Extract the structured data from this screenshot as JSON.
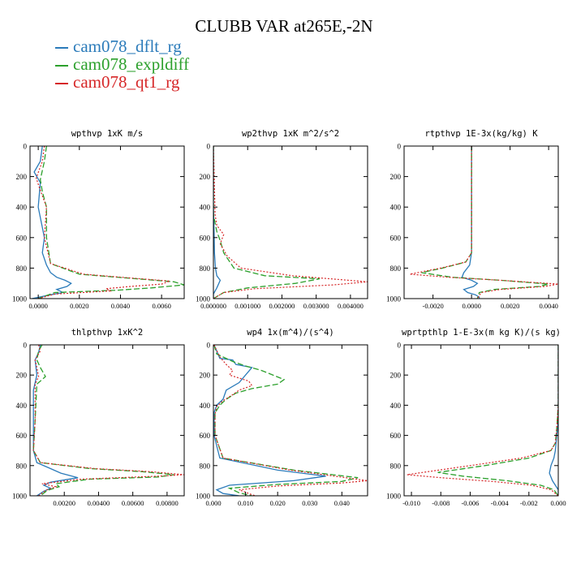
{
  "title": "CLUBB VAR at265E,-2N",
  "legend": [
    {
      "name": "cam078_dflt_rg",
      "color": "#2b7bba"
    },
    {
      "name": "cam078_expldiff",
      "color": "#2ca02c"
    },
    {
      "name": "cam078_qt1_rg",
      "color": "#d62728"
    }
  ],
  "chart_data": [
    {
      "type": "line",
      "title": "wpthvp   1xK m/s",
      "xlim": [
        -0.0004,
        0.0071
      ],
      "ylim": [
        1000,
        0
      ],
      "xticks": [
        0.0,
        0.002,
        0.004,
        0.006
      ],
      "xtick_labels": [
        "0.0000",
        "0.0020",
        "0.0040",
        "0.0060"
      ],
      "yticks": [
        0,
        200,
        400,
        600,
        800,
        1000
      ],
      "series": [
        {
          "name": "cam078_dflt_rg",
          "x": [
            0.0002,
            0.0001,
            -0.0002,
            0.0001,
            0.0,
            0.0003,
            0.0002,
            0.0004,
            0.0006,
            0.0009,
            0.0013,
            0.0016,
            0.0014,
            0.0009,
            0.0012,
            0.0006,
            -0.0003
          ],
          "y": [
            0,
            100,
            170,
            240,
            400,
            600,
            700,
            780,
            830,
            860,
            880,
            900,
            920,
            940,
            960,
            975,
            1000
          ]
        },
        {
          "name": "cam078_expldiff",
          "x": [
            0.0004,
            0.0003,
            0.0001,
            0.0002,
            0.0004,
            0.0004,
            0.0006,
            0.002,
            0.0048,
            0.0066,
            0.0071,
            0.0055,
            0.0038,
            0.0008,
            0.0
          ],
          "y": [
            0,
            100,
            220,
            300,
            400,
            600,
            770,
            840,
            870,
            890,
            910,
            930,
            945,
            960,
            1000
          ]
        },
        {
          "name": "cam078_qt1_rg",
          "x": [
            0.0003,
            0.0002,
            -0.0001,
            0.0001,
            0.0004,
            0.0003,
            0.0006,
            0.0022,
            0.005,
            0.0064,
            0.006,
            0.0045,
            0.0033,
            0.0035,
            0.0008,
            0.0
          ],
          "y": [
            0,
            100,
            210,
            290,
            400,
            600,
            770,
            840,
            870,
            885,
            905,
            920,
            935,
            950,
            970,
            1000
          ]
        }
      ]
    },
    {
      "type": "line",
      "title": "wp2thvp   1xK m^2/s^2",
      "xlim": [
        0.0,
        0.0045
      ],
      "ylim": [
        1000,
        0
      ],
      "xticks": [
        0.0,
        0.001,
        0.002,
        0.003,
        0.004
      ],
      "xtick_labels": [
        "0.000000",
        "0.001000",
        "0.002000",
        "0.003000",
        "0.004000"
      ],
      "yticks": [
        0,
        200,
        400,
        600,
        800,
        1000
      ],
      "series": [
        {
          "name": "cam078_dflt_rg",
          "x": [
            0.0,
            0.0,
            2e-05,
            3e-05,
            6e-05,
            0.0001,
            0.0002,
            0.0001,
            0.0,
            0.0
          ],
          "y": [
            0,
            400,
            550,
            700,
            800,
            850,
            880,
            930,
            970,
            1000
          ]
        },
        {
          "name": "cam078_expldiff",
          "x": [
            0.0,
            0.0,
            0.0001,
            0.0002,
            0.0003,
            0.0006,
            0.0015,
            0.0031,
            0.0024,
            0.001,
            0.0003,
            0.0
          ],
          "y": [
            0,
            450,
            560,
            620,
            700,
            800,
            850,
            870,
            900,
            930,
            960,
            1000
          ]
        },
        {
          "name": "cam078_qt1_rg",
          "x": [
            0.0,
            5e-05,
            0.0001,
            0.0003,
            0.0002,
            0.0004,
            0.0008,
            0.0023,
            0.0045,
            0.0035,
            0.0012,
            0.0003,
            0.0
          ],
          "y": [
            0,
            450,
            520,
            580,
            640,
            720,
            800,
            850,
            890,
            910,
            935,
            960,
            1000
          ]
        }
      ]
    },
    {
      "type": "line",
      "title": "rtpthvp   1E-3x(kg/kg) K",
      "xlim": [
        -0.0035,
        0.0045
      ],
      "ylim": [
        1000,
        0
      ],
      "xticks": [
        -0.002,
        0.0,
        0.002,
        0.004
      ],
      "xtick_labels": [
        "-0.0020",
        "0.0000",
        "0.0020",
        "0.0040"
      ],
      "yticks": [
        0,
        200,
        400,
        600,
        800,
        1000
      ],
      "series": [
        {
          "name": "cam078_dflt_rg",
          "x": [
            0.0,
            0.0,
            -0.0001,
            -0.0004,
            -0.0005,
            0.0,
            0.0003,
            0.0001,
            -0.0004,
            -0.0002,
            0.0002,
            0.0004,
            0.0004
          ],
          "y": [
            0,
            700,
            780,
            830,
            860,
            880,
            900,
            920,
            940,
            960,
            975,
            990,
            1000
          ]
        },
        {
          "name": "cam078_expldiff",
          "x": [
            0.0,
            0.0,
            -0.0003,
            -0.0015,
            -0.0026,
            -0.001,
            0.0015,
            0.004,
            0.0035,
            0.0012,
            0.0004,
            0.0003
          ],
          "y": [
            0,
            700,
            760,
            800,
            830,
            860,
            880,
            905,
            920,
            940,
            960,
            1000
          ]
        },
        {
          "name": "cam078_qt1_rg",
          "x": [
            0.0,
            0.0,
            -0.0003,
            -0.0016,
            -0.0032,
            -0.0012,
            0.0015,
            0.0045,
            0.0038,
            0.0015,
            0.0005,
            0.0003
          ],
          "y": [
            0,
            700,
            760,
            800,
            840,
            860,
            880,
            905,
            920,
            940,
            960,
            1000
          ]
        }
      ]
    },
    {
      "type": "line",
      "title": "thlpthvp   1xK^2",
      "xlim": [
        0.0,
        0.009
      ],
      "ylim": [
        1000,
        0
      ],
      "xticks": [
        0.002,
        0.004,
        0.006,
        0.008
      ],
      "xtick_labels": [
        "0.00200",
        "0.00400",
        "0.00600",
        "0.00800"
      ],
      "yticks": [
        0,
        200,
        400,
        600,
        800,
        1000
      ],
      "series": [
        {
          "name": "cam078_dflt_rg",
          "x": [
            0.0006,
            0.0005,
            0.0003,
            0.0004,
            0.0002,
            0.0002,
            0.0002,
            0.0004,
            0.0012,
            0.0018,
            0.0028,
            0.0012,
            0.0008,
            0.0012,
            0.0008,
            0.0004
          ],
          "y": [
            0,
            50,
            100,
            200,
            300,
            500,
            700,
            780,
            820,
            850,
            880,
            910,
            930,
            950,
            970,
            1000
          ]
        },
        {
          "name": "cam078_expldiff",
          "x": [
            0.0007,
            0.0005,
            0.0004,
            0.0006,
            0.0009,
            0.0004,
            0.0003,
            0.0002,
            0.0006,
            0.0035,
            0.0065,
            0.0084,
            0.0075,
            0.0035,
            0.0015,
            0.0017,
            0.001,
            0.0006
          ],
          "y": [
            0,
            40,
            100,
            150,
            210,
            260,
            500,
            700,
            780,
            820,
            840,
            860,
            875,
            890,
            920,
            940,
            965,
            1000
          ]
        },
        {
          "name": "cam078_qt1_rg",
          "x": [
            0.0005,
            0.0006,
            0.0003,
            0.0004,
            0.0005,
            0.0003,
            0.0003,
            0.0002,
            0.0006,
            0.0038,
            0.007,
            0.009,
            0.0075,
            0.003,
            0.0007,
            0.0015,
            0.0009,
            0.0005
          ],
          "y": [
            0,
            40,
            100,
            150,
            210,
            260,
            500,
            700,
            780,
            820,
            840,
            860,
            870,
            890,
            920,
            940,
            965,
            1000
          ]
        }
      ]
    },
    {
      "type": "line",
      "title": "wp4   1x(m^4)/(s^4)",
      "xlim": [
        0.0,
        0.048
      ],
      "ylim": [
        1000,
        0
      ],
      "xticks": [
        0.0,
        0.01,
        0.02,
        0.03,
        0.04
      ],
      "xtick_labels": [
        "0.000",
        "0.010",
        "0.020",
        "0.030",
        "0.040"
      ],
      "yticks": [
        0,
        200,
        400,
        600,
        800,
        1000
      ],
      "series": [
        {
          "name": "cam078_dflt_rg",
          "x": [
            0.0002,
            0.001,
            0.002,
            0.006,
            0.007,
            0.012,
            0.01,
            0.008,
            0.004,
            0.003,
            0.001,
            0.0002,
            0.0002,
            0.002,
            0.02,
            0.035,
            0.025,
            0.005,
            0.001,
            0.003,
            0.008
          ],
          "y": [
            0,
            40,
            90,
            100,
            130,
            150,
            200,
            250,
            300,
            360,
            400,
            450,
            600,
            750,
            830,
            870,
            900,
            930,
            960,
            985,
            1000
          ]
        },
        {
          "name": "cam078_expldiff",
          "x": [
            0.0002,
            0.001,
            0.006,
            0.01,
            0.015,
            0.022,
            0.02,
            0.012,
            0.007,
            0.004,
            0.002,
            0.0005,
            0.0005,
            0.003,
            0.025,
            0.045,
            0.04,
            0.02,
            0.005,
            0.008,
            0.012
          ],
          "y": [
            0,
            60,
            110,
            140,
            170,
            230,
            260,
            290,
            320,
            360,
            400,
            450,
            600,
            750,
            830,
            880,
            905,
            925,
            950,
            980,
            1000
          ]
        },
        {
          "name": "cam078_qt1_rg",
          "x": [
            0.0002,
            0.002,
            0.004,
            0.006,
            0.005,
            0.011,
            0.012,
            0.008,
            0.006,
            0.003,
            0.001,
            0.0005,
            0.0005,
            0.003,
            0.024,
            0.048,
            0.04,
            0.02,
            0.008,
            0.011,
            0.013
          ],
          "y": [
            0,
            80,
            130,
            170,
            200,
            240,
            270,
            300,
            330,
            370,
            410,
            460,
            600,
            750,
            830,
            900,
            915,
            935,
            960,
            985,
            1000
          ]
        }
      ]
    },
    {
      "type": "line",
      "title": "wprtpthlp   1-E-3x(m kg K)/(s kg)",
      "xlim": [
        -0.0105,
        0.0
      ],
      "ylim": [
        1000,
        0
      ],
      "xticks": [
        -0.01,
        -0.008,
        -0.006,
        -0.004,
        -0.002,
        0.0
      ],
      "xtick_labels": [
        "-0.010",
        "-0.008",
        "-0.006",
        "-0.004",
        "-0.002",
        "0.000"
      ],
      "yticks": [
        0,
        200,
        400,
        600,
        800,
        1000
      ],
      "series": [
        {
          "name": "cam078_dflt_rg",
          "x": [
            0.0,
            0.0,
            -0.0001,
            -0.0002,
            -0.0003,
            -0.0005,
            -0.0006,
            -0.0004,
            -0.0002,
            0.0,
            0.0
          ],
          "y": [
            0,
            500,
            600,
            700,
            750,
            800,
            850,
            900,
            930,
            960,
            1000
          ]
        },
        {
          "name": "cam078_expldiff",
          "x": [
            0.0,
            0.0,
            -0.0001,
            -0.0002,
            -0.0005,
            -0.002,
            -0.005,
            -0.0082,
            -0.0065,
            -0.0035,
            -0.0012,
            -0.0003,
            0.0
          ],
          "y": [
            0,
            400,
            550,
            650,
            700,
            750,
            800,
            845,
            870,
            900,
            930,
            960,
            1000
          ]
        },
        {
          "name": "cam078_qt1_rg",
          "x": [
            0.0,
            0.0,
            -0.0001,
            -0.0002,
            -0.0005,
            -0.0025,
            -0.006,
            -0.0103,
            -0.008,
            -0.0045,
            -0.0018,
            -0.0005,
            0.0
          ],
          "y": [
            0,
            400,
            550,
            650,
            700,
            750,
            800,
            860,
            880,
            905,
            930,
            960,
            1000
          ]
        }
      ]
    }
  ]
}
